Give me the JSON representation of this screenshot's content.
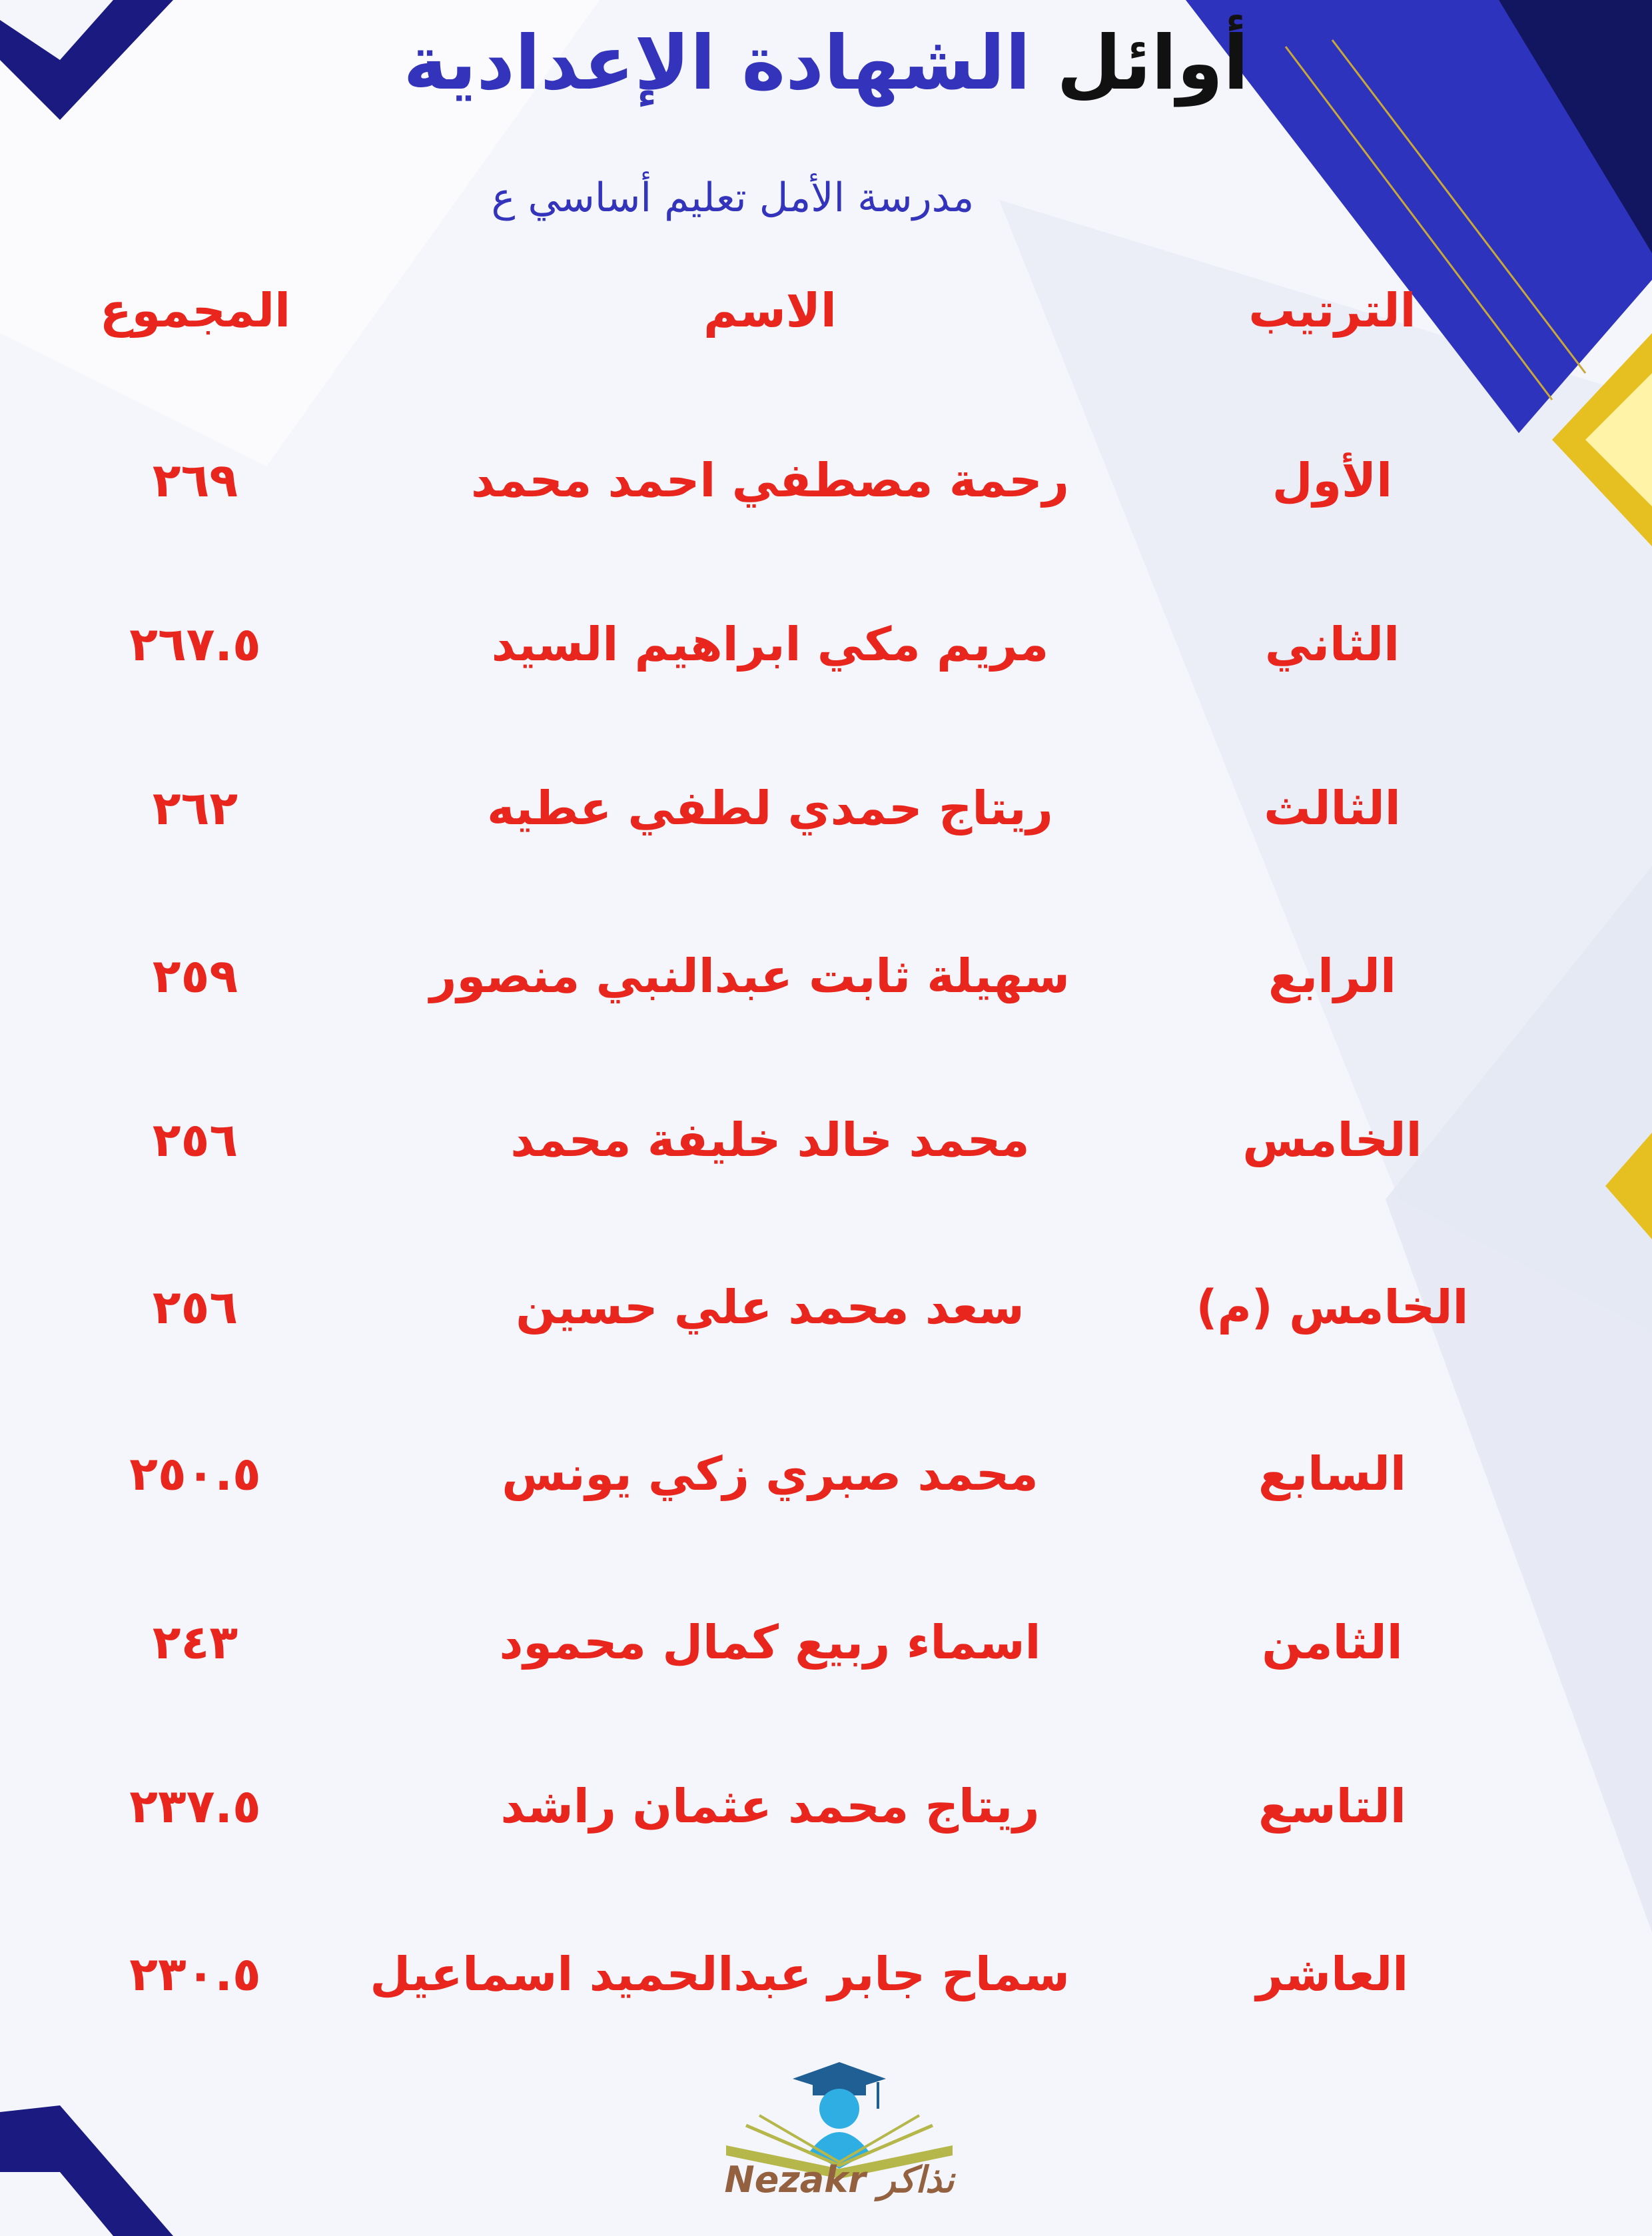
{
  "header": {
    "title_part1": "أوائل",
    "title_part2": "الشهادة الإعدادية",
    "subtitle": "مدرسة الأمل تعليم أساسي ع"
  },
  "table": {
    "columns": {
      "rank": "الترتيب",
      "name": "الاسم",
      "total": "المجموع"
    },
    "rows": [
      {
        "rank": "الأول",
        "name": "رحمة مصطفي احمد محمد",
        "total": "٢٦٩"
      },
      {
        "rank": "الثاني",
        "name": "مريم مكي ابراهيم السيد",
        "total": "٢٦٧.٥"
      },
      {
        "rank": "الثالث",
        "name": "ريتاج حمدي لطفي عطيه",
        "total": "٢٦٢"
      },
      {
        "rank": "الرابع",
        "name": "سهيلة ثابت عبدالنبي منصور",
        "total": "٢٥٩"
      },
      {
        "rank": "الخامس",
        "name": "محمد خالد خليفة محمد",
        "total": "٢٥٦"
      },
      {
        "rank": "الخامس (م)",
        "name": "سعد محمد علي حسين",
        "total": "٢٥٦"
      },
      {
        "rank": "السابع",
        "name": "محمد صبري زكي يونس",
        "total": "٢٥٠.٥"
      },
      {
        "rank": "الثامن",
        "name": "اسماء ربيع كمال محمود",
        "total": "٢٤٣"
      },
      {
        "rank": "التاسع",
        "name": "ريتاج محمد عثمان راشد",
        "total": "٢٣٧.٥"
      },
      {
        "rank": "العاشر",
        "name": "سماح جابر عبدالحميد اسماعيل",
        "total": "٢٣٠.٥"
      }
    ]
  },
  "logo": {
    "text": "Nezakr نذاكر"
  },
  "colors": {
    "title_blue": "#3333bb",
    "table_red": "#e8261e",
    "accent_navy": "#1a1a80",
    "gold": "#e6c020"
  }
}
